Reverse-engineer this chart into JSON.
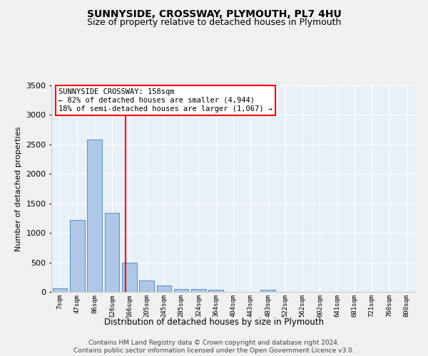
{
  "title": "SUNNYSIDE, CROSSWAY, PLYMOUTH, PL7 4HU",
  "subtitle": "Size of property relative to detached houses in Plymouth",
  "xlabel": "Distribution of detached houses by size in Plymouth",
  "ylabel": "Number of detached properties",
  "categories": [
    "7sqm",
    "47sqm",
    "86sqm",
    "126sqm",
    "166sqm",
    "205sqm",
    "245sqm",
    "285sqm",
    "324sqm",
    "364sqm",
    "404sqm",
    "443sqm",
    "483sqm",
    "522sqm",
    "562sqm",
    "602sqm",
    "641sqm",
    "681sqm",
    "721sqm",
    "760sqm",
    "800sqm"
  ],
  "values": [
    55,
    1220,
    2580,
    1340,
    500,
    195,
    105,
    50,
    45,
    35,
    0,
    0,
    35,
    0,
    0,
    0,
    0,
    0,
    0,
    0,
    0
  ],
  "bar_color": "#aec6e8",
  "bar_edgecolor": "#5a8fc0",
  "annotation_line1": "SUNNYSIDE CROSSWAY: 158sqm",
  "annotation_line2": "← 82% of detached houses are smaller (4,944)",
  "annotation_line3": "18% of semi-detached houses are larger (1,067) →",
  "ylim": [
    0,
    3500
  ],
  "yticks": [
    0,
    500,
    1000,
    1500,
    2000,
    2500,
    3000,
    3500
  ],
  "bg_color": "#e8f0f8",
  "grid_color": "#ffffff",
  "fig_bg_color": "#f0f0f0",
  "footer1": "Contains HM Land Registry data © Crown copyright and database right 2024.",
  "footer2": "Contains public sector information licensed under the Open Government Licence v3.0."
}
